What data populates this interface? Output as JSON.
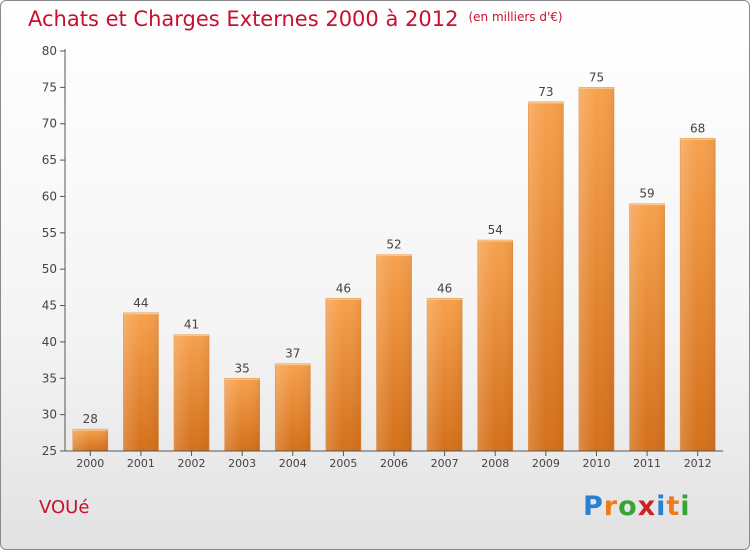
{
  "chart_data": {
    "type": "bar",
    "title": "Achats et Charges Externes 2000 à 2012",
    "subtitle": "(en milliers d'€)",
    "categories": [
      "2000",
      "2001",
      "2002",
      "2003",
      "2004",
      "2005",
      "2006",
      "2007",
      "2008",
      "2009",
      "2010",
      "2011",
      "2012"
    ],
    "values": [
      28,
      44,
      41,
      35,
      37,
      46,
      52,
      46,
      54,
      73,
      75,
      59,
      68
    ],
    "data_labels": [
      "28",
      "44",
      "41",
      "35",
      "37",
      "46",
      "52",
      "46",
      "54",
      "73",
      "75",
      "59",
      "68"
    ],
    "ylim": [
      25,
      80
    ],
    "yticks": [
      25,
      30,
      35,
      40,
      45,
      50,
      55,
      60,
      65,
      70,
      75,
      80
    ],
    "ytick_labels": [
      "25",
      "30",
      "35",
      "40",
      "45",
      "50",
      "55",
      "60",
      "65",
      "70",
      "75",
      "80"
    ],
    "grid": false,
    "bar_color": "#f0953e",
    "xlabel": "",
    "ylabel": ""
  },
  "footer": {
    "town": "VOUé",
    "logo": {
      "letters": [
        "P",
        "r",
        "o",
        "x",
        "i",
        "t",
        "i"
      ],
      "colors": [
        "#2c7fd0",
        "#ef7a1a",
        "#3aa335",
        "#cc2222",
        "#2c7fd0",
        "#ef7a1a",
        "#3aa335"
      ]
    }
  },
  "colors": {
    "title": "#c8102e",
    "axis": "#555555"
  }
}
